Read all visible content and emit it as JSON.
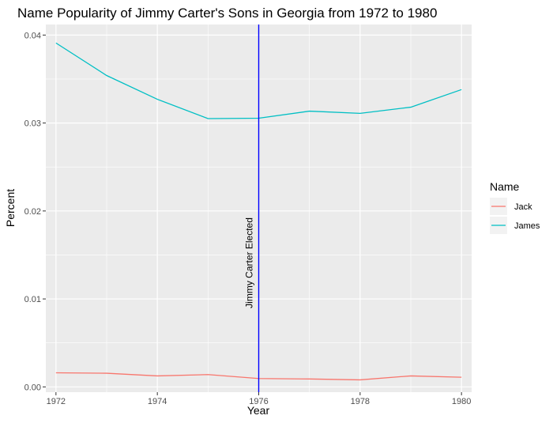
{
  "chart_data": {
    "type": "line",
    "title": "Name Popularity of Jimmy Carter's Sons in Georgia from 1972 to 1980",
    "xlabel": "Year",
    "ylabel": "Percent",
    "xlim": [
      1971.8,
      1980.2
    ],
    "ylim": [
      -0.0006,
      0.0412
    ],
    "x_ticks": [
      1972,
      1974,
      1976,
      1978,
      1980
    ],
    "y_ticks": [
      0.0,
      0.01,
      0.02,
      0.03,
      0.04
    ],
    "y_tick_labels": [
      "0.00",
      "0.01",
      "0.02",
      "0.03",
      "0.04"
    ],
    "x_tick_labels": [
      "1972",
      "1974",
      "1976",
      "1978",
      "1980"
    ],
    "x": [
      1972,
      1973,
      1974,
      1975,
      1976,
      1977,
      1978,
      1979,
      1980
    ],
    "series": [
      {
        "name": "Jack",
        "color": "#F8766D",
        "values": [
          0.0016,
          0.00155,
          0.00125,
          0.0014,
          0.00095,
          0.0009,
          0.0008,
          0.00125,
          0.0011
        ]
      },
      {
        "name": "James",
        "color": "#00BFC4",
        "values": [
          0.0391,
          0.0354,
          0.0327,
          0.0305,
          0.03055,
          0.03135,
          0.0311,
          0.0318,
          0.0338
        ]
      }
    ],
    "vline": {
      "x": 1976,
      "color": "#0000FF",
      "label": "Jimmy Carter Elected"
    },
    "legend": {
      "title": "Name",
      "placement": "right"
    },
    "grid": true,
    "panel_color": "#EBEBEB"
  }
}
